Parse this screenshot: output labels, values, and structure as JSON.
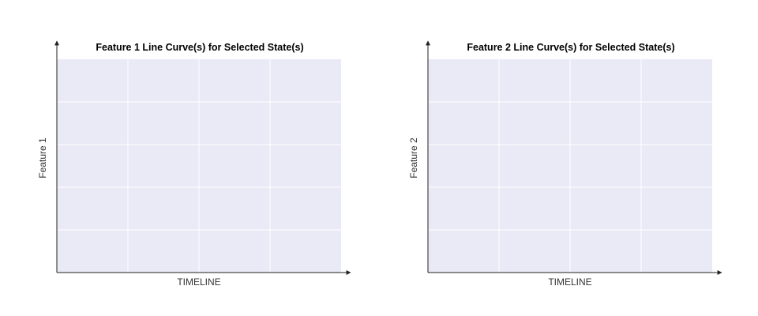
{
  "colors": {
    "plot_background": "#e9eaf6",
    "grid_line": "#ffffff",
    "axis": "#222222",
    "page_background": "#ffffff"
  },
  "chart_data": [
    {
      "type": "line",
      "title": "Feature 1 Line Curve(s) for Selected State(s)",
      "xlabel": "TIMELINE",
      "ylabel": "Feature 1",
      "series": [],
      "grid": true,
      "x_gridlines": 4,
      "y_gridlines": 5
    },
    {
      "type": "line",
      "title": "Feature 2 Line Curve(s) for Selected State(s)",
      "xlabel": "TIMELINE",
      "ylabel": "Feature 2",
      "series": [],
      "grid": true,
      "x_gridlines": 4,
      "y_gridlines": 5
    }
  ]
}
